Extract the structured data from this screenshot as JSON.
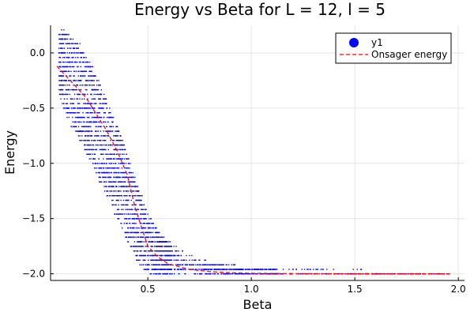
{
  "chart_data": {
    "type": "scatter",
    "title": "Energy vs Beta for L = 12, l = 5",
    "xlabel": "Beta",
    "ylabel": "Energy",
    "xlim": [
      0.03,
      2.03
    ],
    "ylim": [
      -2.06,
      0.25
    ],
    "x_ticks": [
      0.5,
      1.0,
      1.5,
      2.0
    ],
    "x_tick_labels": [
      "0.5",
      "1.0",
      "1.5",
      "2.0"
    ],
    "y_ticks": [
      0.0,
      -0.5,
      -1.0,
      -1.5,
      -2.0
    ],
    "y_tick_labels": [
      "0.0",
      "−0.5",
      "−1.0",
      "−1.5",
      "−2.0"
    ],
    "grid": true,
    "legend_position": "top-right",
    "series": [
      {
        "name": "y1",
        "kind": "scatter",
        "color": "#0000ff",
        "note_points_are_sampled_band": true,
        "band": {
          "x": [
            0.07,
            0.1,
            0.15,
            0.2,
            0.25,
            0.3,
            0.35,
            0.4,
            0.45,
            0.5,
            0.55,
            0.6,
            0.65,
            0.7,
            0.8,
            0.9,
            1.0,
            1.1,
            1.2,
            1.3,
            1.4,
            1.5,
            1.6,
            1.7,
            1.8,
            1.9,
            1.96
          ],
          "upper": [
            0.2,
            0.2,
            0.12,
            0.0,
            -0.2,
            -0.42,
            -0.65,
            -0.9,
            -1.2,
            -1.45,
            -1.62,
            -1.72,
            -1.78,
            -1.84,
            -1.9,
            -1.93,
            -1.95,
            -1.96,
            -1.97,
            -1.97,
            -1.98,
            -1.98,
            -1.98,
            -1.99,
            -1.99,
            -1.99,
            -1.99
          ],
          "lower": [
            -0.35,
            -0.55,
            -0.72,
            -0.9,
            -1.1,
            -1.28,
            -1.5,
            -1.7,
            -1.88,
            -2.0,
            -2.0,
            -2.0,
            -2.0,
            -2.0,
            -2.0,
            -2.0,
            -2.0,
            -2.0,
            -2.0,
            -2.0,
            -2.0,
            -2.0,
            -2.0,
            -2.0,
            -2.0,
            -2.0,
            -2.0
          ]
        }
      },
      {
        "name": "Onsager energy",
        "kind": "line",
        "style": "dashed",
        "color": "#ff0000",
        "x": [
          0.06,
          0.1,
          0.15,
          0.2,
          0.25,
          0.3,
          0.35,
          0.4,
          0.44,
          0.5,
          0.55,
          0.6,
          0.7,
          0.8,
          0.9,
          1.0,
          1.2,
          1.4,
          1.6,
          1.8,
          1.96
        ],
        "y": [
          -0.12,
          -0.2,
          -0.3,
          -0.4,
          -0.55,
          -0.7,
          -0.88,
          -1.1,
          -1.41,
          -1.75,
          -1.85,
          -1.91,
          -1.96,
          -1.98,
          -1.99,
          -1.995,
          -1.998,
          -1.999,
          -2.0,
          -2.0,
          -2.0
        ]
      }
    ]
  }
}
